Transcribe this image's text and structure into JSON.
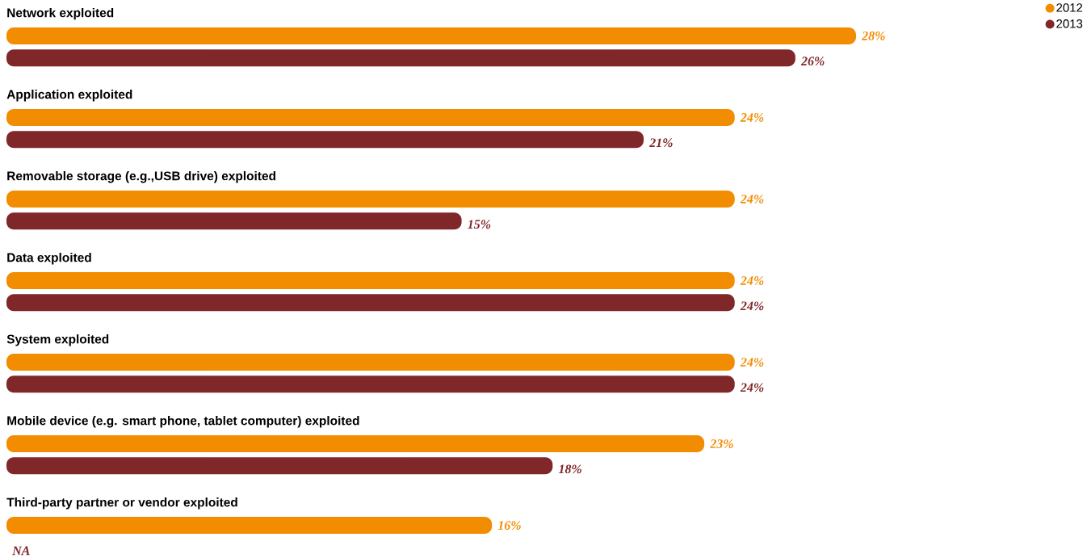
{
  "chart_data": {
    "type": "bar",
    "orientation": "horizontal",
    "legend": "top right",
    "categories": [
      "Network exploited",
      "Application exploited",
      "Removable storage (e.g.,USB drive) exploited",
      "Data exploited",
      "System exploited",
      "Mobile device (e.g. smart phone, tablet computer) exploited",
      "Third-party partner or vendor exploited"
    ],
    "series": [
      {
        "name": "2012",
        "color": "#f28c00",
        "values": [
          28,
          24,
          24,
          24,
          24,
          23,
          16
        ],
        "value_labels": [
          "28%",
          "24%",
          "24%",
          "24%",
          "24%",
          "23%",
          "16%"
        ]
      },
      {
        "name": "2013",
        "color": "#80272a",
        "values": [
          26,
          21,
          15,
          24,
          24,
          18,
          null
        ],
        "value_labels": [
          "26%",
          "21%",
          "15%",
          "24%",
          "24%",
          "18%",
          "NA"
        ]
      }
    ]
  }
}
